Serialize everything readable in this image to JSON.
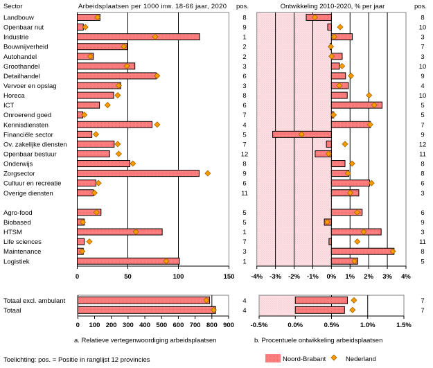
{
  "header": {
    "sector_label": "Sector",
    "pos_label_left": "pos.",
    "pos_label_right": "pos."
  },
  "captions": {
    "a": "a. Relatieve vertegenwoordiging arbeidsplaatsen",
    "b": "b. Procentuele ontwikkeling arbeidsplaatsen"
  },
  "footnote": "Toelichting: pos. = Positie in ranglijst 12 provincies",
  "legend": {
    "placement": "bottom-right",
    "items": [
      {
        "label": "Noord-Brabant",
        "marker": "bar"
      },
      {
        "label": "Nederland",
        "marker": "diamond"
      }
    ]
  },
  "colors": {
    "noord_brabant": "#FF8080",
    "noord_brabant_texture": "#F06E6E",
    "nederland": "#FF9900",
    "shade": "#FCE2E5",
    "shade_texture": "#F5C4CA"
  },
  "chart_data": [
    {
      "type": "bar",
      "orientation": "horizontal",
      "title": "Arbeidsplaatsen per 1000 inw. 18-66 jaar, 2020",
      "xlabel": "",
      "ylabel": "Sector",
      "xlim": [
        0,
        150
      ],
      "xtick_values": [
        0,
        50,
        100,
        150
      ],
      "xtick_labels": [
        "0",
        "50",
        "100",
        "150"
      ],
      "gridlines_at": [
        50,
        100
      ],
      "grid": true,
      "group_sizes": [
        19,
        6
      ],
      "categories": [
        "Landbouw",
        "Openbaar nut",
        "Industrie",
        "Bouwnijverheid",
        "Autohandel",
        "Groothandel",
        "Detailhandel",
        "Vervoer en opslag",
        "Horeca",
        "ICT",
        "Onroerend goed",
        "Kennisdiensten",
        "Financiële sector",
        "Ov. zakelijke diensten",
        "Openbaar bestuur",
        "Onderwijs",
        "Zorgsector",
        "Cultuur en recreatie",
        "Overige diensten",
        "Agro-food",
        "Biobased",
        "HTSM",
        "Life sciences",
        "Maintenance",
        "Logistiek"
      ],
      "series": [
        {
          "name": "Noord-Brabant",
          "style": "bar",
          "values": [
            22.5,
            6,
            121,
            49.5,
            16,
            57,
            78,
            43,
            36,
            22,
            5.5,
            74,
            14.5,
            36.5,
            32,
            52,
            120.5,
            18.5,
            16,
            23.5,
            7,
            84,
            7,
            6,
            101
          ]
        },
        {
          "name": "Nederland",
          "style": "diamond",
          "values": [
            20,
            8,
            77,
            46,
            13,
            49,
            79,
            41,
            40,
            30,
            7,
            79,
            18.5,
            40,
            41,
            55,
            129,
            21,
            17,
            19,
            5.5,
            58,
            12,
            5,
            88
          ]
        }
      ],
      "pos_label": "pos.",
      "pos": [
        "8",
        "9",
        "1",
        "2",
        "2",
        "3",
        "6",
        "3",
        "8",
        "6",
        "7",
        "4",
        "5",
        "7",
        "12",
        "8",
        "9",
        "6",
        "11",
        "5",
        "5",
        "1",
        "7",
        "3",
        "1"
      ]
    },
    {
      "type": "bar",
      "orientation": "horizontal",
      "title": "Ontwikkeling 2010-2020, % per jaar",
      "xlabel": "",
      "ylabel": "",
      "unit": "%",
      "xlim": [
        -4,
        4
      ],
      "xtick_values": [
        -4,
        -3,
        -2,
        -1,
        0,
        1,
        2,
        3,
        4
      ],
      "xtick_labels": [
        "-4%",
        "-3%",
        "-2%",
        "-1%",
        "0%",
        "1%",
        "2%",
        "3%",
        "4%"
      ],
      "gridlines_at": [
        -3,
        -2,
        -1,
        0,
        1,
        2,
        3
      ],
      "shaded_range": [
        -4,
        0
      ],
      "grid": true,
      "group_sizes": [
        19,
        6
      ],
      "categories": [
        "Landbouw",
        "Openbaar nut",
        "Industrie",
        "Bouwnijverheid",
        "Autohandel",
        "Groothandel",
        "Detailhandel",
        "Vervoer en opslag",
        "Horeca",
        "ICT",
        "Onroerend goed",
        "Kennisdiensten",
        "Financiële sector",
        "Ov. zakelijke diensten",
        "Openbaar bestuur",
        "Onderwijs",
        "Zorgsector",
        "Cultuur en recreatie",
        "Overige diensten",
        "Agro-food",
        "Biobased",
        "HTSM",
        "Life sciences",
        "Maintenance",
        "Logistiek"
      ],
      "series": [
        {
          "name": "Noord-Brabant",
          "style": "bar",
          "values": [
            -1.35,
            -0.2,
            1.12,
            -0.07,
            0.58,
            0.43,
            0.76,
            0.91,
            0.85,
            2.72,
            0.13,
            2.1,
            -3.15,
            -0.27,
            -0.87,
            0.73,
            0.94,
            2.05,
            1.47,
            1.65,
            -0.38,
            2.67,
            -0.13,
            3.36,
            1.41
          ]
        },
        {
          "name": "Nederland",
          "style": "diamond",
          "values": [
            -0.89,
            0.47,
            0.15,
            -0.03,
            0.01,
            0.57,
            1.05,
            0.42,
            2.02,
            2.3,
            0.12,
            2.08,
            -1.6,
            0.73,
            -0.15,
            1.11,
            0.89,
            2.15,
            1.01,
            1.38,
            -0.22,
            1.73,
            1.39,
            3.3,
            1.24
          ]
        }
      ],
      "pos_label": "pos.",
      "pos": [
        "8",
        "10",
        "3",
        "7",
        "3",
        "10",
        "9",
        "4",
        "10",
        "5",
        "5",
        "7",
        "9",
        "12",
        "11",
        "8",
        "8",
        "6",
        "3",
        "6",
        "9",
        "3",
        "11",
        "8",
        "5"
      ]
    },
    {
      "type": "bar",
      "orientation": "horizontal",
      "title": "",
      "xlim": [
        0,
        900
      ],
      "xtick_values": [
        0,
        100,
        200,
        300,
        400,
        500,
        600,
        700,
        800,
        900
      ],
      "xtick_labels": [
        "0",
        "100",
        "200",
        "300",
        "400",
        "500",
        "600",
        "700",
        "800",
        "900"
      ],
      "gridlines_at": [
        800
      ],
      "grid": true,
      "categories": [
        "Totaal excl. ambulant",
        "Totaal"
      ],
      "series": [
        {
          "name": "Noord-Brabant",
          "style": "bar",
          "values": [
            786,
            822
          ]
        },
        {
          "name": "Nederland",
          "style": "diamond",
          "values": [
            767,
            811
          ]
        }
      ],
      "pos": [
        "4",
        "4"
      ]
    },
    {
      "type": "bar",
      "orientation": "horizontal",
      "title": "",
      "unit": "%",
      "xlim": [
        -0.5,
        1.5
      ],
      "xtick_values": [
        -0.5,
        0,
        0.5,
        1.0,
        1.5
      ],
      "xtick_labels": [
        "-0.5%",
        "0.0%",
        "0.5%",
        "1.0%",
        "1.5%"
      ],
      "gridlines_at": [
        0.5,
        1.0
      ],
      "shaded_range": [
        -0.5,
        0
      ],
      "grid": true,
      "categories": [
        "Totaal excl. ambulant",
        "Totaal"
      ],
      "series": [
        {
          "name": "Noord-Brabant",
          "style": "bar",
          "values": [
            0.72,
            0.68
          ]
        },
        {
          "name": "Nederland",
          "style": "diamond",
          "values": [
            0.81,
            0.79
          ]
        }
      ],
      "pos": [
        "7",
        "7"
      ]
    }
  ]
}
